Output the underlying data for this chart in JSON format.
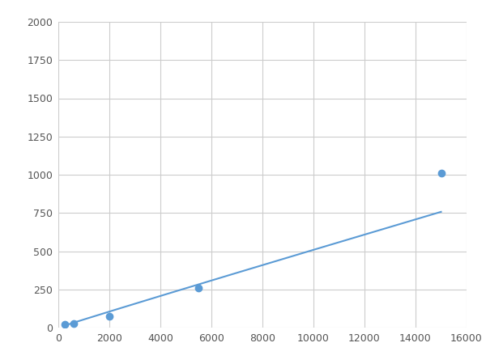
{
  "x": [
    250,
    600,
    2000,
    5500,
    15000
  ],
  "y": [
    20,
    25,
    75,
    260,
    1010
  ],
  "line_color": "#5b9bd5",
  "marker_color": "#5b9bd5",
  "marker_size": 6,
  "line_width": 1.5,
  "xlim": [
    0,
    16000
  ],
  "ylim": [
    0,
    2000
  ],
  "xticks": [
    0,
    2000,
    4000,
    6000,
    8000,
    10000,
    12000,
    14000,
    16000
  ],
  "yticks": [
    0,
    250,
    500,
    750,
    1000,
    1250,
    1500,
    1750,
    2000
  ],
  "grid_color": "#cccccc",
  "bg_color": "#ffffff",
  "fig_bg_color": "#ffffff",
  "tick_label_color": "#555555",
  "tick_fontsize": 9
}
